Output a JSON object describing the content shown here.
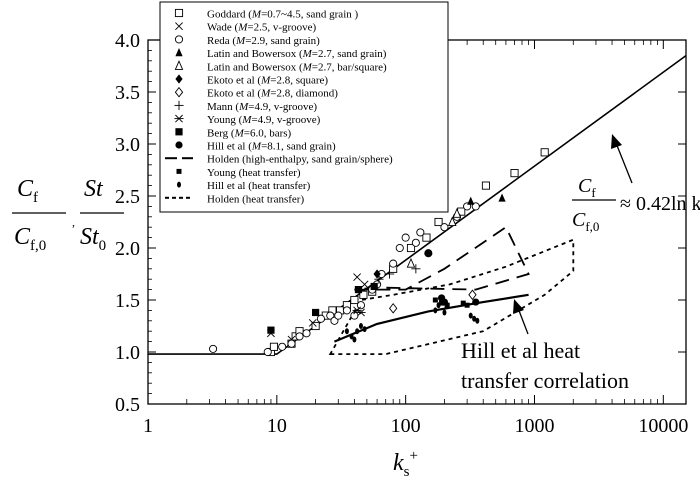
{
  "chart_data": {
    "type": "scatter",
    "x_scale": "log",
    "xlim": [
      1,
      15000
    ],
    "ylim": [
      0.5,
      4.0
    ],
    "x_ticks": [
      "1",
      "10",
      "100",
      "1000",
      "10000"
    ],
    "y_ticks": [
      "0.5",
      "1.0",
      "1.5",
      "2.0",
      "2.5",
      "3.0",
      "3.5",
      "4.0"
    ],
    "xlabel": {
      "base": "k",
      "sub": "s",
      "sup": "+"
    },
    "ylabel": {
      "num1": "C",
      "num1_sub": "f",
      "den1": "C",
      "den1_sub": "f,0",
      "sep": ",",
      "num2": "St",
      "den2": "St",
      "den2_sub": "0"
    },
    "annotations": {
      "correlation": {
        "num": "C",
        "num_sub": "f",
        "den": "C",
        "den_sub": "f,0",
        "rhs": "≈ 0.42ln k",
        "rhs_sub": "s",
        "rhs_sup": "+"
      },
      "hill_line1": "Hill et al heat",
      "hill_line2": "transfer correlation"
    },
    "legend": [
      {
        "marker": "open-square",
        "pre": "Goddard (",
        "ital": "M",
        "post": "=0.7~4.5, sand grain )"
      },
      {
        "marker": "cross",
        "pre": "Wade (",
        "ital": "M",
        "post": "=2.5, v-groove)"
      },
      {
        "marker": "open-circle",
        "pre": "Reda (",
        "ital": "M",
        "post": "=2.9, sand grain)"
      },
      {
        "marker": "filled-triangle",
        "pre": "Latin and Bowersox (",
        "ital": "M",
        "post": "=2.7, sand grain)"
      },
      {
        "marker": "open-triangle",
        "pre": "Latin and Bowersox (",
        "ital": "M",
        "post": "=2.7, bar/square)"
      },
      {
        "marker": "filled-diamond",
        "pre": "Ekoto et al (",
        "ital": "M",
        "post": "=2.8, square)"
      },
      {
        "marker": "open-diamond",
        "pre": "Ekoto et al (",
        "ital": "M",
        "post": "=2.8, diamond)"
      },
      {
        "marker": "plus",
        "pre": "Mann (",
        "ital": "M",
        "post": "=4.9, v-groove)"
      },
      {
        "marker": "asterisk",
        "pre": "Young (",
        "ital": "M",
        "post": "=4.9, v-groove)"
      },
      {
        "marker": "filled-square",
        "pre": "Berg (",
        "ital": "M",
        "post": "=6.0, bars)"
      },
      {
        "marker": "filled-circle",
        "pre": "Hill et al (",
        "ital": "M",
        "post": "=8.1, sand grain)"
      },
      {
        "marker": "long-dash",
        "pre": "Holden (high-enthalpy, sand grain/sphere)",
        "ital": "",
        "post": ""
      },
      {
        "marker": "small-filled-square",
        "pre": "Young (heat transfer)",
        "ital": "",
        "post": ""
      },
      {
        "marker": "small-filled-circle",
        "pre": "Hill et al (heat transfer)",
        "ital": "",
        "post": ""
      },
      {
        "marker": "short-dash",
        "pre": "Holden (heat transfer)",
        "ital": "",
        "post": ""
      }
    ],
    "lines": {
      "correlation": [
        [
          1,
          0.98
        ],
        [
          10,
          0.98
        ],
        [
          15000,
          3.85
        ]
      ],
      "hill_correlation": [
        [
          28,
          1.1
        ],
        [
          60,
          1.27
        ],
        [
          150,
          1.39
        ],
        [
          400,
          1.48
        ],
        [
          900,
          1.55
        ]
      ]
    },
    "regions": {
      "holden_high_enthalpy": [
        [
          40,
          1.6
        ],
        [
          100,
          1.6
        ],
        [
          200,
          1.8
        ],
        [
          600,
          2.2
        ],
        [
          900,
          1.75
        ],
        [
          350,
          1.6
        ],
        [
          60,
          1.62
        ]
      ],
      "holden_heat_transfer": [
        [
          26,
          0.98
        ],
        [
          70,
          0.98
        ],
        [
          400,
          1.2
        ],
        [
          1200,
          1.55
        ],
        [
          2000,
          1.78
        ],
        [
          2000,
          2.08
        ],
        [
          600,
          1.82
        ],
        [
          220,
          1.65
        ],
        [
          80,
          1.55
        ],
        [
          45,
          1.5
        ]
      ]
    },
    "series": [
      {
        "marker": "open-square",
        "points": [
          [
            9,
            1.0
          ],
          [
            9.5,
            1.05
          ],
          [
            13,
            1.08
          ],
          [
            14,
            1.15
          ],
          [
            15,
            1.2
          ],
          [
            20,
            1.25
          ],
          [
            24,
            1.35
          ],
          [
            27,
            1.4
          ],
          [
            31,
            1.4
          ],
          [
            35,
            1.45
          ],
          [
            40,
            1.5
          ],
          [
            47,
            1.55
          ],
          [
            55,
            1.58
          ],
          [
            80,
            1.8
          ],
          [
            110,
            2.0
          ],
          [
            145,
            2.1
          ],
          [
            180,
            2.25
          ],
          [
            270,
            2.35
          ],
          [
            420,
            2.6
          ],
          [
            700,
            2.72
          ],
          [
            1200,
            2.92
          ]
        ]
      },
      {
        "marker": "cross",
        "points": [
          [
            9,
            1.18
          ],
          [
            13,
            1.12
          ],
          [
            19,
            1.28
          ],
          [
            42,
            1.72
          ],
          [
            48,
            1.65
          ]
        ]
      },
      {
        "marker": "open-circle",
        "points": [
          [
            3.2,
            1.03
          ],
          [
            8.5,
            1.0
          ],
          [
            11,
            1.05
          ],
          [
            13,
            1.08
          ],
          [
            15,
            1.15
          ],
          [
            17,
            1.18
          ],
          [
            22,
            1.32
          ],
          [
            26,
            1.35
          ],
          [
            28,
            1.3
          ],
          [
            30,
            1.35
          ],
          [
            35,
            1.4
          ],
          [
            40,
            1.35
          ],
          [
            45,
            1.45
          ],
          [
            55,
            1.6
          ],
          [
            60,
            1.65
          ],
          [
            65,
            1.75
          ],
          [
            80,
            1.85
          ],
          [
            90,
            2.0
          ],
          [
            100,
            2.1
          ],
          [
            120,
            2.05
          ],
          [
            130,
            2.15
          ],
          [
            150,
            1.95
          ],
          [
            200,
            2.2
          ],
          [
            250,
            2.3
          ],
          [
            300,
            2.4
          ],
          [
            350,
            2.4
          ]
        ]
      },
      {
        "marker": "filled-triangle",
        "points": [
          [
            320,
            2.45
          ],
          [
            560,
            2.48
          ]
        ]
      },
      {
        "marker": "open-triangle",
        "points": [
          [
            110,
            1.85
          ],
          [
            230,
            2.25
          ],
          [
            250,
            2.33
          ]
        ]
      },
      {
        "marker": "filled-diamond",
        "points": [
          [
            60,
            1.75
          ]
        ]
      },
      {
        "marker": "open-diamond",
        "points": [
          [
            80,
            1.42
          ],
          [
            330,
            1.55
          ]
        ]
      },
      {
        "marker": "plus",
        "points": [
          [
            62,
            1.7
          ],
          [
            75,
            1.75
          ],
          [
            120,
            1.8
          ]
        ]
      },
      {
        "marker": "asterisk",
        "points": [
          [
            42,
            1.4
          ],
          [
            45,
            1.38
          ]
        ]
      },
      {
        "marker": "filled-square",
        "points": [
          [
            9,
            1.21
          ],
          [
            20,
            1.38
          ],
          [
            43,
            1.6
          ],
          [
            57,
            1.63
          ]
        ]
      },
      {
        "marker": "filled-circle",
        "points": [
          [
            150,
            1.95
          ],
          [
            190,
            1.52
          ],
          [
            200,
            1.48
          ],
          [
            350,
            1.48
          ]
        ]
      },
      {
        "marker": "small-filled-square",
        "points": [
          [
            170,
            1.5
          ],
          [
            190,
            1.47
          ],
          [
            210,
            1.45
          ],
          [
            280,
            1.47
          ],
          [
            300,
            1.45
          ]
        ]
      },
      {
        "marker": "small-filled-circle",
        "points": [
          [
            35,
            1.2
          ],
          [
            38,
            1.15
          ],
          [
            40,
            1.12
          ],
          [
            42,
            1.2
          ],
          [
            45,
            1.25
          ],
          [
            48,
            1.22
          ],
          [
            170,
            1.4
          ],
          [
            180,
            1.45
          ],
          [
            200,
            1.38
          ],
          [
            320,
            1.35
          ],
          [
            340,
            1.32
          ],
          [
            360,
            1.3
          ]
        ]
      }
    ]
  }
}
